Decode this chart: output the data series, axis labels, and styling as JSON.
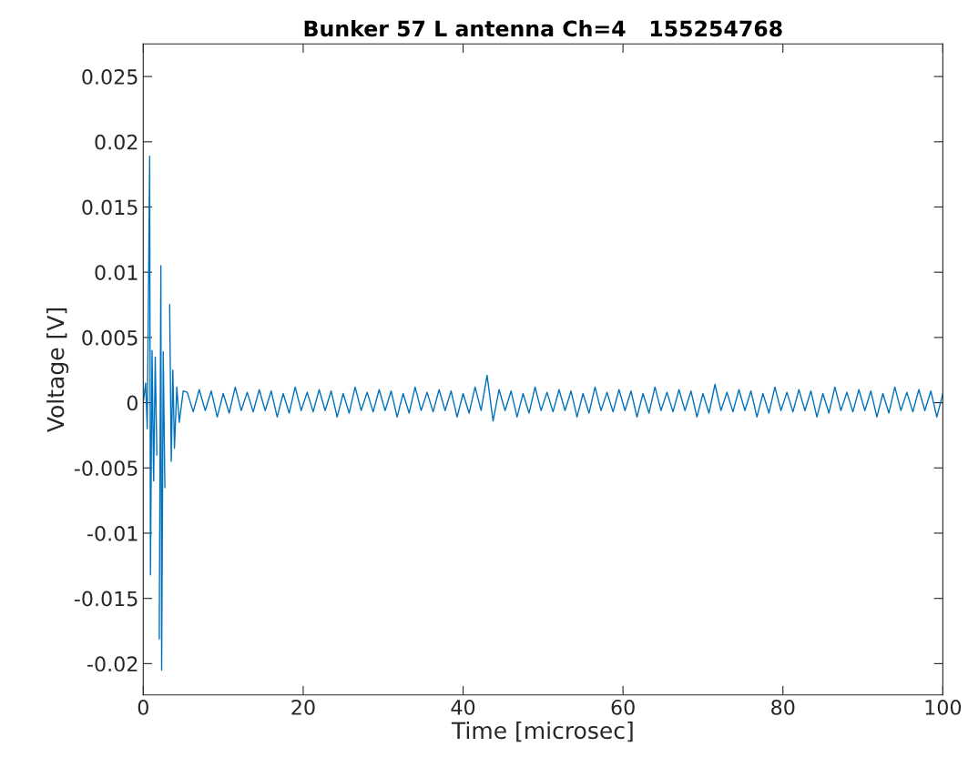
{
  "chart_data": {
    "type": "line",
    "title": "Bunker 57 L antenna Ch=4   155254768",
    "xlabel": "Time [microsec]",
    "ylabel": "Voltage [V]",
    "xlim": [
      0,
      100
    ],
    "xticks": [
      0,
      20,
      40,
      60,
      80,
      100
    ],
    "ylim": [
      -0.0224,
      0.0275
    ],
    "yticks": [
      -0.02,
      -0.015,
      -0.01,
      -0.005,
      0,
      0.005,
      0.01,
      0.015,
      0.02,
      0.025
    ],
    "grid": false,
    "marker": "none",
    "line_style": "solid",
    "series": [
      {
        "color": "#0072bd",
        "x": [
          0,
          0.3,
          0.5,
          0.8,
          0.9,
          1.1,
          1.3,
          1.5,
          1.7,
          1.9,
          2.0,
          2.2,
          2.3,
          2.5,
          2.7,
          3.0,
          3.1,
          3.3,
          3.5,
          3.7,
          3.9,
          4.2,
          4.5,
          5,
          5.5,
          6.25,
          7,
          7.75,
          8.5,
          9.25,
          10,
          10.75,
          11.5,
          12.25,
          13,
          13.75,
          14.5,
          15.25,
          16,
          16.75,
          17.5,
          18.25,
          19,
          19.75,
          20.5,
          21.25,
          22,
          22.75,
          23.5,
          24.25,
          25,
          25.75,
          26.5,
          27.25,
          28,
          28.75,
          29.5,
          30.25,
          31,
          31.75,
          32.5,
          33.25,
          34,
          34.75,
          35.5,
          36.25,
          37,
          37.75,
          38.5,
          39.25,
          40,
          40.75,
          41.5,
          42.25,
          43,
          43.75,
          44.5,
          45.25,
          46,
          46.75,
          47.5,
          48.25,
          49,
          49.75,
          50.5,
          51.25,
          52,
          52.75,
          53.5,
          54.25,
          55,
          55.75,
          56.5,
          57.25,
          58,
          58.75,
          59.5,
          60.25,
          61,
          61.75,
          62.5,
          63.25,
          64,
          64.75,
          65.5,
          66.25,
          67,
          67.75,
          68.5,
          69.25,
          70,
          70.75,
          71.5,
          72.25,
          73,
          73.75,
          74.5,
          75.25,
          76,
          76.75,
          77.5,
          78.25,
          79,
          79.75,
          80.5,
          81.25,
          82,
          82.75,
          83.5,
          84.25,
          85,
          85.75,
          86.5,
          87.25,
          88,
          88.75,
          89.5,
          90.25,
          91,
          91.75,
          92.5,
          93.25,
          94,
          94.75,
          95.5,
          96.25,
          97,
          97.75,
          98.5,
          99.25,
          100
        ],
        "values": [
          0,
          0.0015,
          -0.002,
          0.0189,
          -0.0132,
          0.004,
          -0.006,
          0.0035,
          -0.004,
          null,
          -0.0181,
          0.0105,
          -0.0205,
          0.0039,
          -0.0065,
          null,
          null,
          0.0075,
          -0.0045,
          0.0025,
          -0.0035,
          0.0012,
          -0.0015,
          0.0009,
          0.0008,
          -0.0007,
          0.001,
          -0.0006,
          0.0009,
          -0.0011,
          0.0007,
          -0.0008,
          0.0012,
          -0.0006,
          0.0008,
          -0.0007,
          0.001,
          -0.0006,
          0.0009,
          -0.0011,
          0.0007,
          -0.0008,
          0.0012,
          -0.0006,
          0.0008,
          -0.0007,
          0.001,
          -0.0006,
          0.0009,
          -0.0011,
          0.0007,
          -0.0008,
          0.0012,
          -0.0006,
          0.0008,
          -0.0007,
          0.001,
          -0.0006,
          0.0009,
          -0.0011,
          0.0007,
          -0.0008,
          0.0012,
          -0.0006,
          0.0008,
          -0.0007,
          0.001,
          -0.0006,
          0.0009,
          -0.0011,
          0.0007,
          -0.0008,
          0.0012,
          -0.0006,
          0.0021,
          -0.0014,
          0.001,
          -0.0006,
          0.0009,
          -0.0011,
          0.0007,
          -0.0008,
          0.0012,
          -0.0006,
          0.0008,
          -0.0007,
          0.001,
          -0.0006,
          0.0009,
          -0.0011,
          0.0007,
          -0.0008,
          0.0012,
          -0.0006,
          0.0008,
          -0.0007,
          0.001,
          -0.0006,
          0.0009,
          -0.0011,
          0.0007,
          -0.0008,
          0.0012,
          -0.0006,
          0.0008,
          -0.0007,
          0.001,
          -0.0006,
          0.0009,
          -0.0011,
          0.0007,
          -0.0008,
          0.0014,
          -0.0006,
          0.0008,
          -0.0007,
          0.001,
          -0.0006,
          0.0009,
          -0.0011,
          0.0007,
          -0.0008,
          0.0012,
          -0.0006,
          0.0008,
          -0.0007,
          0.001,
          -0.0006,
          0.0009,
          -0.0011,
          0.0007,
          -0.0008,
          0.0012,
          -0.0006,
          0.0008,
          -0.0007,
          0.001,
          -0.0006,
          0.0009,
          -0.0011,
          0.0007,
          -0.0008,
          0.0012,
          -0.0006,
          0.0008,
          -0.0007,
          0.001,
          -0.0006,
          0.0009,
          -0.0011,
          0.0007
        ]
      }
    ]
  }
}
